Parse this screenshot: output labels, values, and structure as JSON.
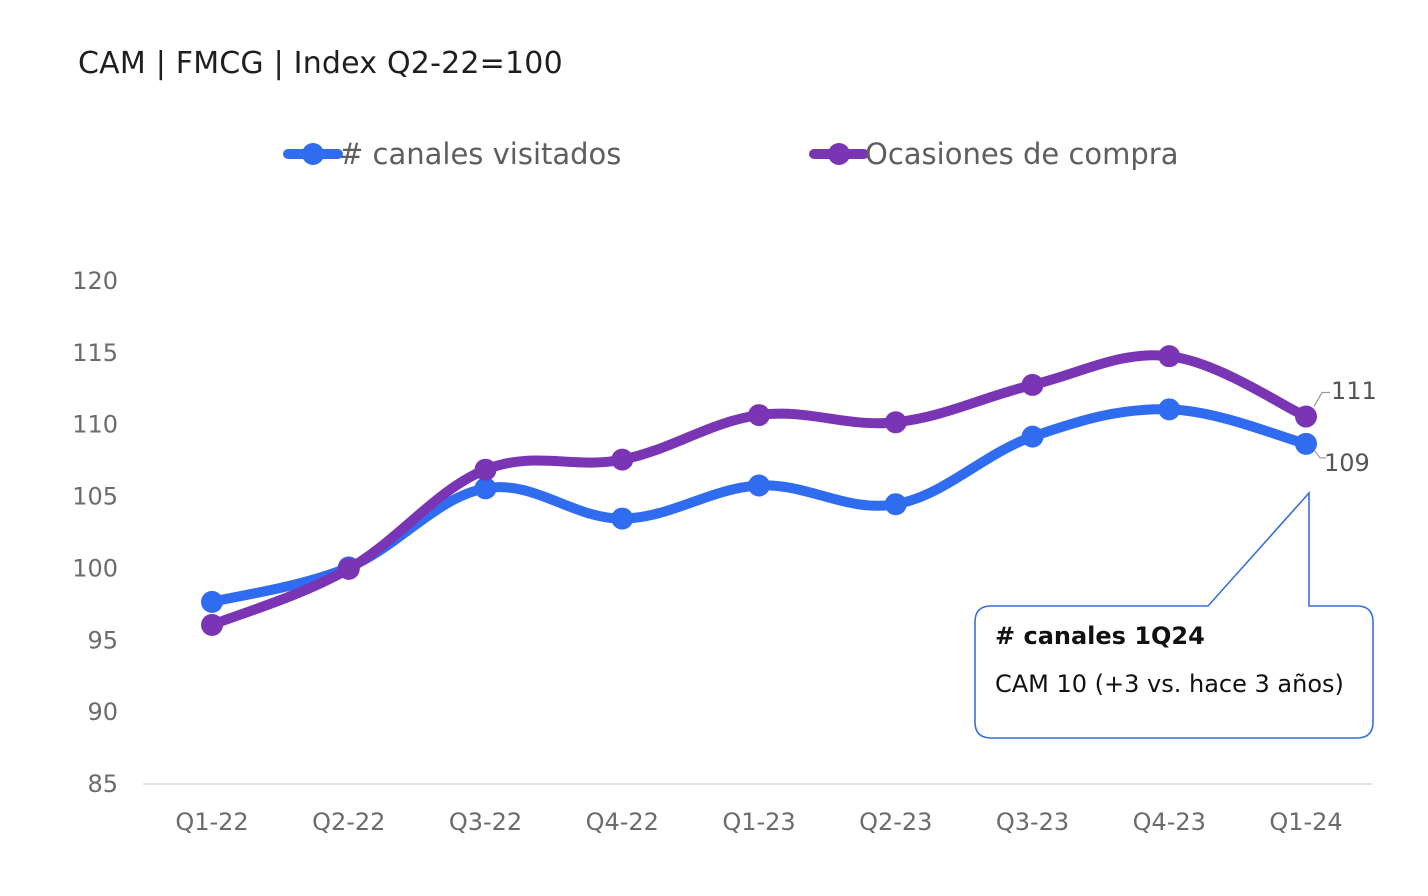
{
  "chart_data": {
    "type": "line",
    "title": "CAM | FMCG | Index Q2-22=100",
    "categories": [
      "Q1-22",
      "Q2-22",
      "Q3-22",
      "Q4-22",
      "Q1-23",
      "Q2-23",
      "Q3-23",
      "Q4-23",
      "Q1-24"
    ],
    "series": [
      {
        "name": "# canales visitados",
        "color": "#2f6cf0",
        "values": [
          97.6,
          100,
          105.5,
          103.4,
          105.7,
          104.4,
          109.1,
          111,
          108.6
        ]
      },
      {
        "name": "Ocasiones de compra",
        "color": "#7a35b5",
        "values": [
          96,
          99.9,
          106.8,
          107.5,
          110.6,
          110.1,
          112.7,
          114.7,
          110.5
        ]
      }
    ],
    "end_labels": [
      {
        "series": "Ocasiones de compra",
        "text": "111"
      },
      {
        "series": "# canales visitados",
        "text": "109"
      }
    ],
    "ylim": [
      85,
      120
    ],
    "yticks": [
      85,
      90,
      95,
      100,
      105,
      110,
      115,
      120
    ],
    "xlabel": "",
    "ylabel": "",
    "grid": false,
    "legend": "top-center"
  },
  "callout": {
    "title": "# canales 1Q24",
    "body": "CAM 10  (+3 vs. hace 3 años)"
  }
}
